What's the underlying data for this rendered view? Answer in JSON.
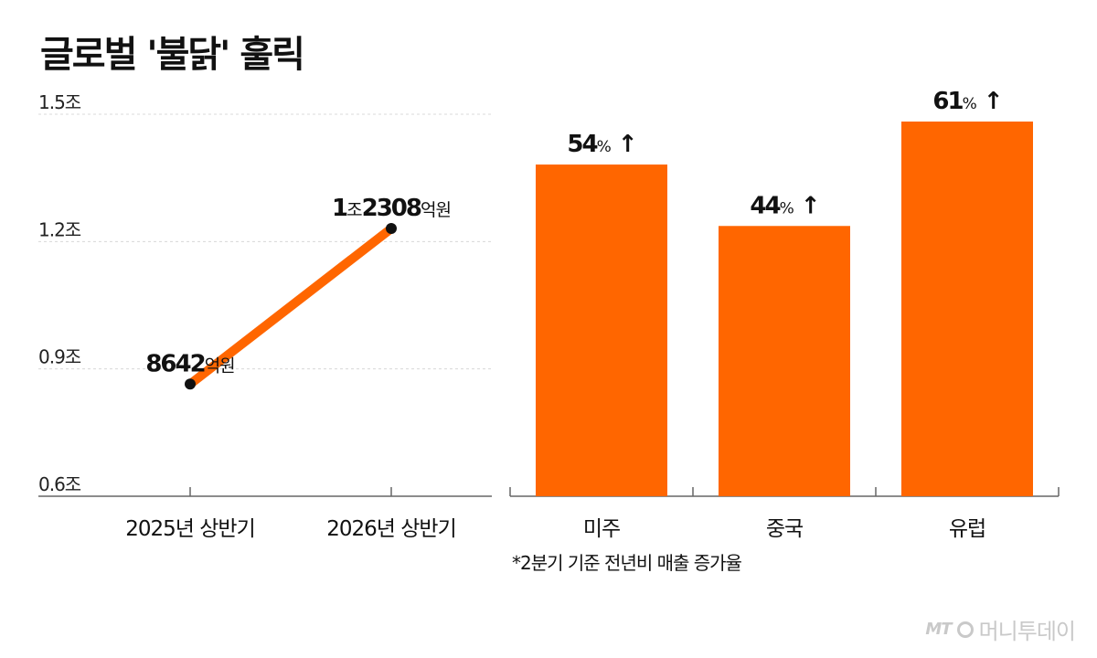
{
  "title": "글로벌 '불닭' 훌릭",
  "footnote": "*2분기 기준 전년비 매출 증가율",
  "logo": {
    "mark": "MT",
    "name": "머니투데이"
  },
  "colors": {
    "accent": "#ff6600",
    "dot": "#111111",
    "grid": "#d8d8d8",
    "axis": "#666666"
  },
  "chart_data": [
    {
      "type": "line",
      "x": [
        "2025년 상반기",
        "2026년 상반기"
      ],
      "y_ticks": [
        "1.5조",
        "1.2조",
        "0.9조",
        "0.6조"
      ],
      "y_tick_values": [
        1.5,
        1.2,
        0.9,
        0.6
      ],
      "ylim": [
        0.6,
        1.5
      ],
      "grid": true,
      "series": [
        {
          "values": [
            0.8642,
            1.2308
          ],
          "labels": [
            {
              "big": "8642",
              "small": "억원"
            },
            {
              "big": "1",
              "small": "조",
              "big2": "2308",
              "small2": "억원"
            }
          ]
        }
      ]
    },
    {
      "type": "bar",
      "categories": [
        "미주",
        "중국",
        "유럽"
      ],
      "values": [
        54,
        44,
        61
      ],
      "value_labels": [
        {
          "num": "54",
          "unit": "%",
          "arrow": "↑"
        },
        {
          "num": "44",
          "unit": "%",
          "arrow": "↑"
        },
        {
          "num": "61",
          "unit": "%",
          "arrow": "↑"
        }
      ],
      "baseline": 0
    }
  ]
}
